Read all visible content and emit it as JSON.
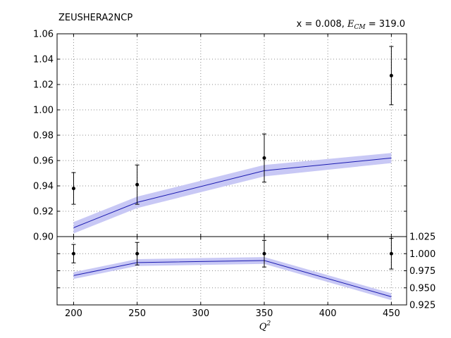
{
  "chart_data": {
    "type": "line",
    "title": "ZEUSHERA2NCP",
    "annotation": {
      "prefix": "x = 0.008, ",
      "ecm_symbol": "E",
      "ecm_sub": "CM",
      "suffix": " = 319.0"
    },
    "xlabel": {
      "base": "Q",
      "sup": "2"
    },
    "x": [
      200,
      250,
      350,
      450
    ],
    "xlim": [
      187,
      462
    ],
    "xticks": [
      200,
      250,
      300,
      350,
      400,
      450
    ],
    "xtick_labels": [
      "200",
      "250",
      "300",
      "350",
      "400",
      "450"
    ],
    "grid": true,
    "top_panel": {
      "ylim": [
        0.9,
        1.06
      ],
      "yticks": [
        0.9,
        0.92,
        0.94,
        0.96,
        0.98,
        1.0,
        1.02,
        1.04,
        1.06
      ],
      "ytick_labels": [
        "0.90",
        "0.92",
        "0.94",
        "0.96",
        "0.98",
        "1.00",
        "1.02",
        "1.04",
        "1.06"
      ],
      "ytick_side": "left",
      "data": {
        "y": [
          0.938,
          0.941,
          0.962,
          1.027
        ],
        "err": [
          0.0125,
          0.0155,
          0.019,
          0.023
        ]
      },
      "theory": {
        "y": [
          0.907,
          0.927,
          0.952,
          0.962
        ],
        "band_low": [
          0.9025,
          0.9225,
          0.9475,
          0.958
        ],
        "band_high": [
          0.9115,
          0.9315,
          0.9565,
          0.966
        ]
      }
    },
    "bottom_panel": {
      "ylim": [
        0.925,
        1.025
      ],
      "yticks": [
        0.925,
        0.95,
        0.975,
        1.0,
        1.025
      ],
      "ytick_labels": [
        "0.925",
        "0.950",
        "0.975",
        "1.000",
        "1.025"
      ],
      "ytick_side": "right",
      "data": {
        "y": [
          1.0,
          1.0,
          1.0,
          1.0
        ],
        "err": [
          0.0135,
          0.0165,
          0.0195,
          0.0225
        ]
      },
      "theory": {
        "y": [
          0.968,
          0.987,
          0.99,
          0.937
        ],
        "band_low": [
          0.963,
          0.982,
          0.985,
          0.932
        ],
        "band_high": [
          0.973,
          0.992,
          0.995,
          0.942
        ]
      }
    },
    "colors": {
      "theory_line": "#1a1ab0",
      "theory_band": "#c8c8f5",
      "data_points": "#000000",
      "grid": "#8c8c8c"
    }
  }
}
